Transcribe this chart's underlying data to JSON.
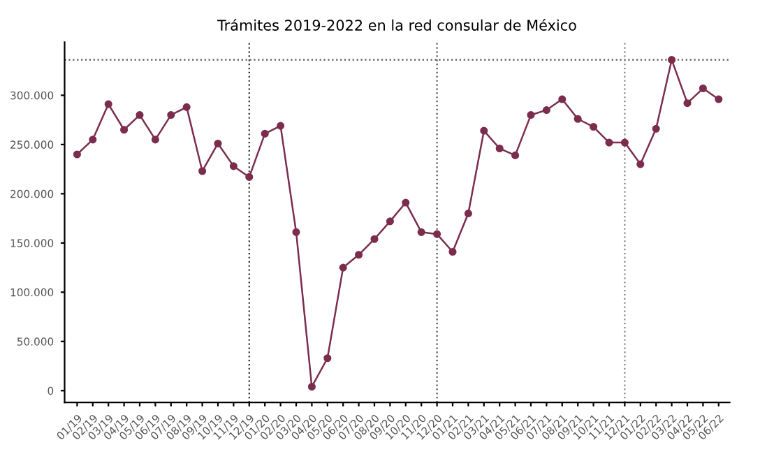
{
  "chart_data": {
    "type": "line",
    "title": "Trámites 2019-2022 en la red consular de México",
    "categories": [
      "01/19",
      "02/19",
      "03/19",
      "04/19",
      "05/19",
      "06/19",
      "07/19",
      "08/19",
      "09/19",
      "10/19",
      "11/19",
      "12/19",
      "01/20",
      "02/20",
      "03/20",
      "04/20",
      "05/20",
      "06/20",
      "07/20",
      "08/20",
      "09/20",
      "10/20",
      "11/20",
      "12/20",
      "01/21",
      "02/21",
      "03/21",
      "04/21",
      "05/21",
      "06/21",
      "07/21",
      "08/21",
      "09/21",
      "10/21",
      "11/21",
      "12/21",
      "01/22",
      "02/22",
      "03/22",
      "04/22",
      "05/22",
      "06/22"
    ],
    "series": [
      {
        "color": "#7b2d4e",
        "values": [
          240000,
          255000,
          291000,
          265000,
          280000,
          255000,
          280000,
          288000,
          223000,
          251000,
          228000,
          217000,
          261000,
          269000,
          161000,
          4000,
          33000,
          125000,
          138000,
          154000,
          172000,
          191000,
          161000,
          159000,
          141000,
          180000,
          264000,
          246000,
          239000,
          280000,
          285000,
          296000,
          276000,
          268000,
          252000,
          252000,
          230000,
          266000,
          336000,
          292000,
          307000,
          296000
        ]
      }
    ],
    "ylim": [
      -12000,
      354000
    ],
    "yticks": [
      {
        "value": 0,
        "label": "0"
      },
      {
        "value": 50000,
        "label": "50.000"
      },
      {
        "value": 100000,
        "label": "100.000"
      },
      {
        "value": 150000,
        "label": "150.000"
      },
      {
        "value": 200000,
        "label": "200.000"
      },
      {
        "value": 250000,
        "label": "250.000"
      },
      {
        "value": 300000,
        "label": "300.000"
      }
    ],
    "ref_lines": [
      {
        "axis": "y",
        "value": 336000,
        "color": "#555555",
        "line_style": "dotted"
      },
      {
        "axis": "x",
        "value": "12/19",
        "color": "#333333",
        "line_style": "dotted"
      },
      {
        "axis": "x",
        "value": "12/20",
        "color": "#555555",
        "line_style": "dotted"
      },
      {
        "axis": "x",
        "value": "12/21",
        "color": "#888888",
        "line_style": "dotted"
      }
    ],
    "marker": "circle",
    "line_style": "solid",
    "grid": false,
    "legend": false
  }
}
